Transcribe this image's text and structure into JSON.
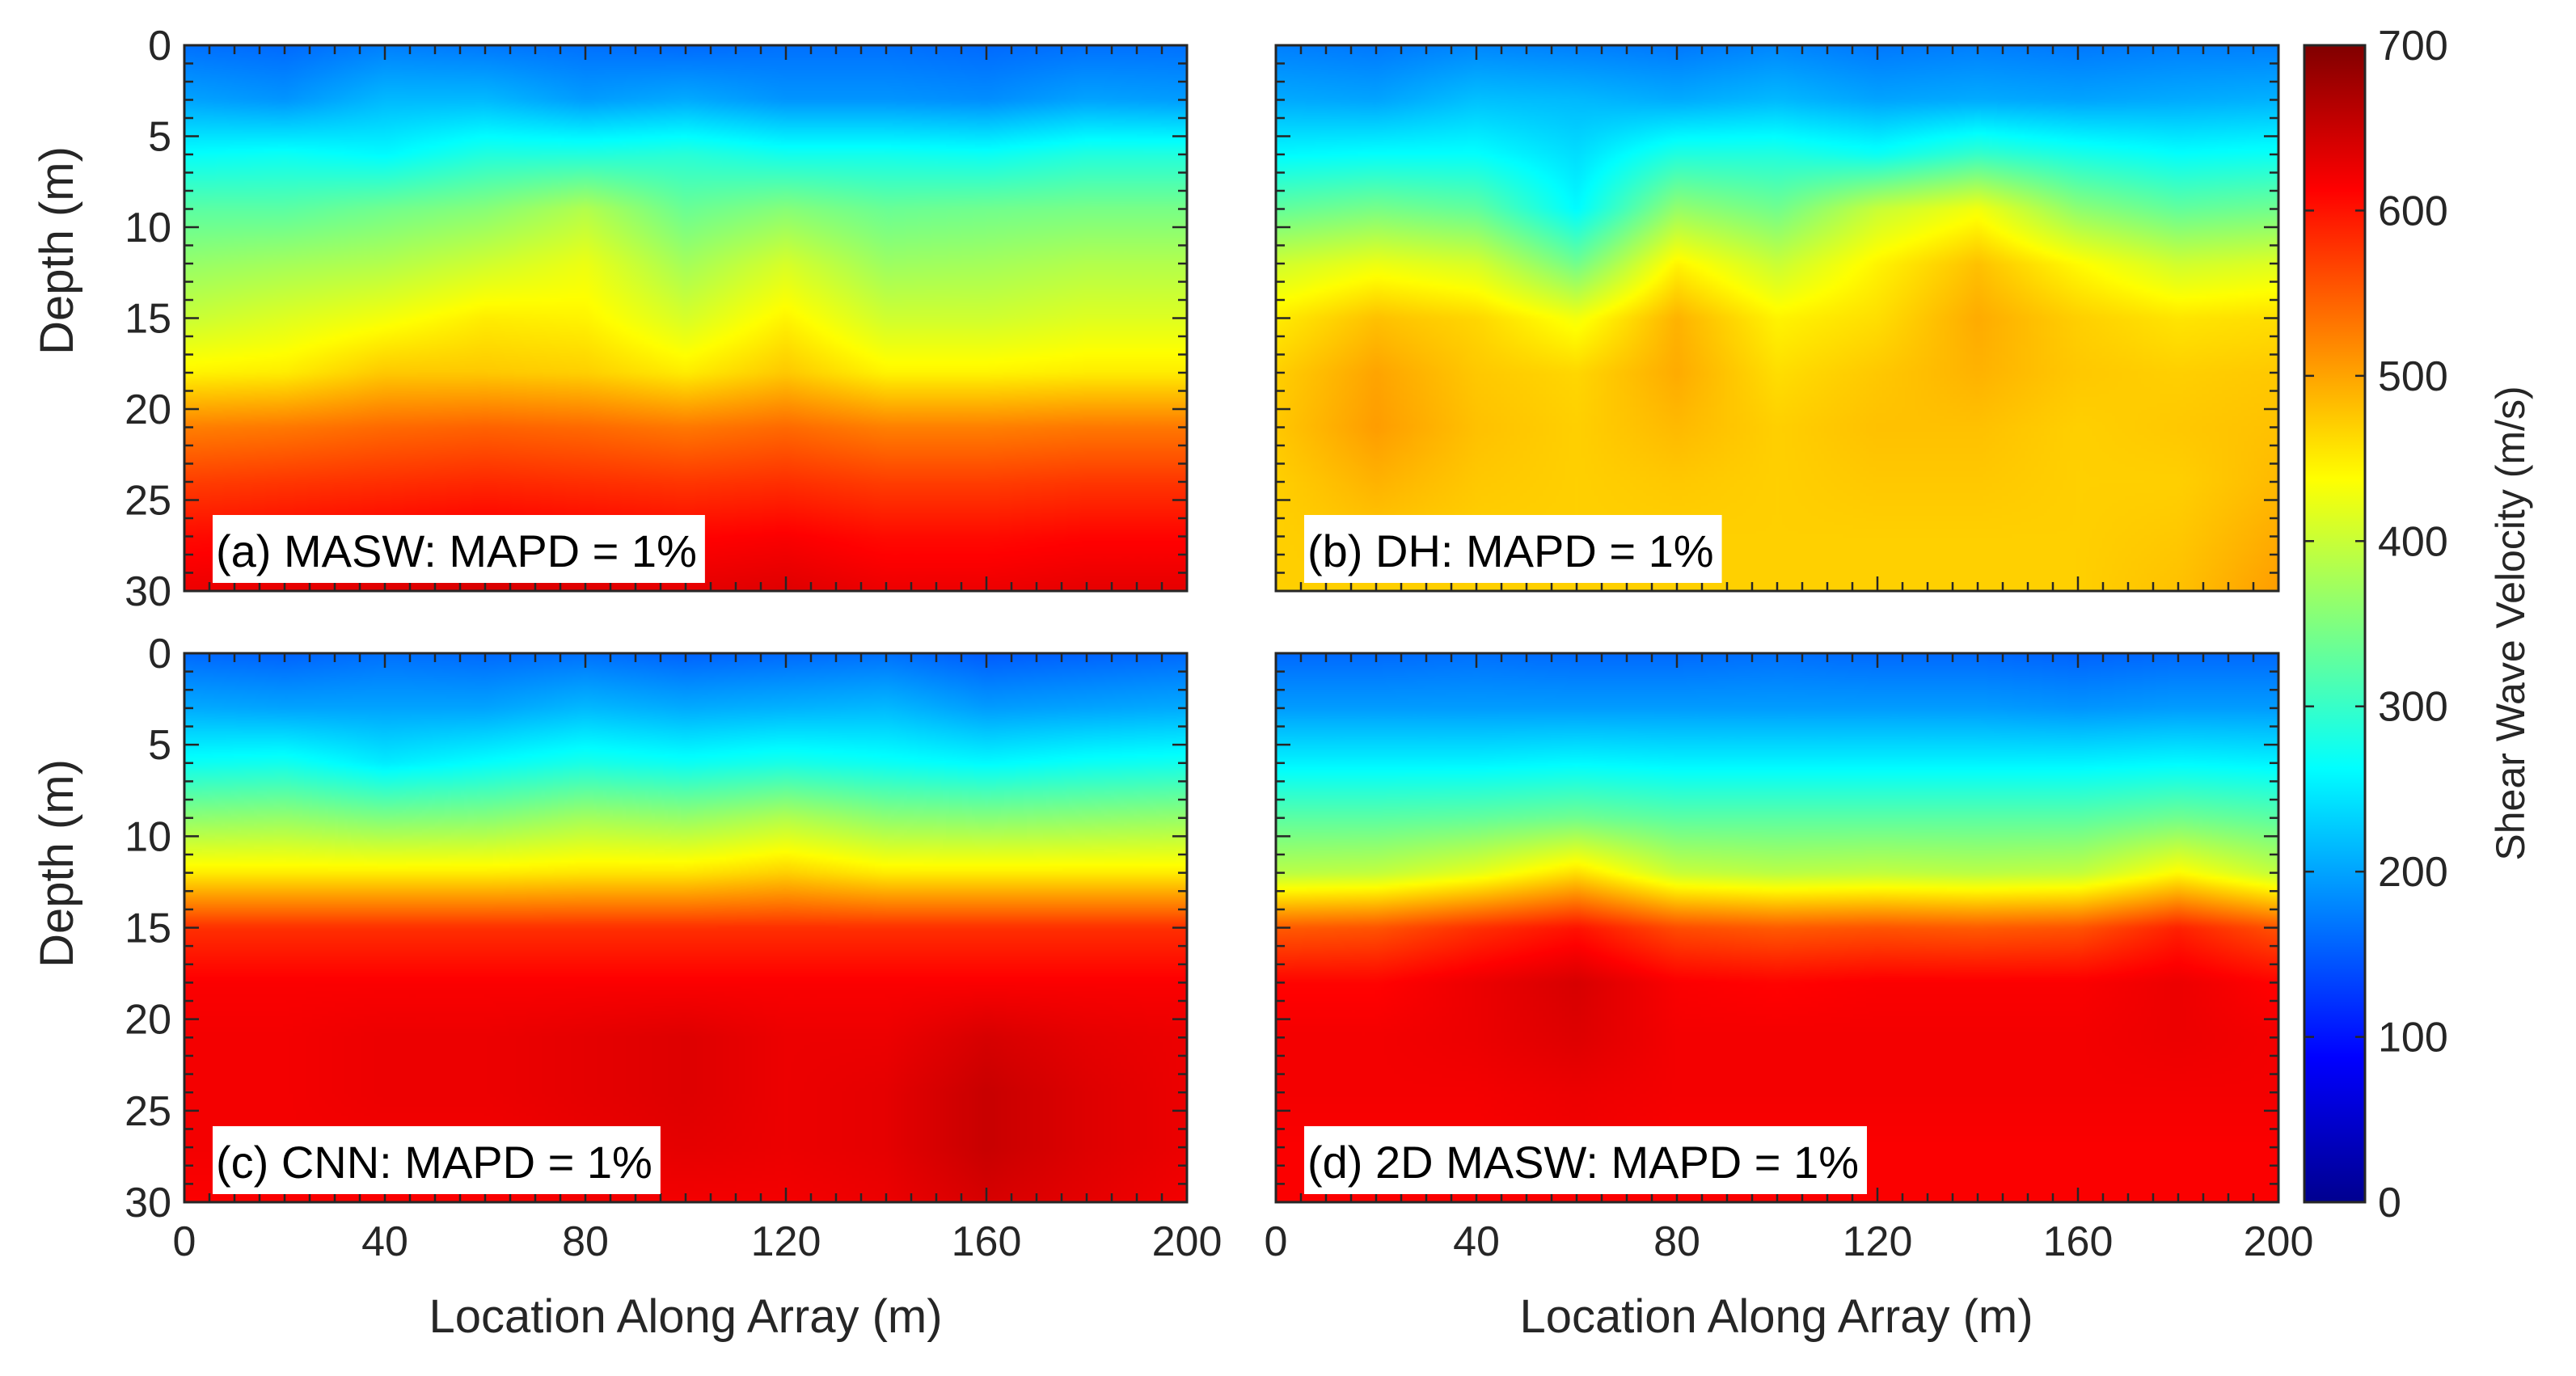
{
  "chart_data": {
    "type": "heatmap",
    "shared": {
      "xlabel": "Location Along Array (m)",
      "ylabel": "Depth (m)",
      "x_ticks": [
        0,
        40,
        80,
        120,
        160,
        200
      ],
      "y_ticks": [
        0,
        5,
        10,
        15,
        20,
        25,
        30
      ],
      "xlim": [
        0,
        200
      ],
      "ylim": [
        0,
        30
      ],
      "y_reversed": true
    },
    "colorbar": {
      "label": "Shear Wave Velocity (m/s)",
      "ticks": [
        0,
        100,
        200,
        300,
        400,
        500,
        600,
        700
      ],
      "range": [
        0,
        700
      ],
      "colormap": "jet"
    },
    "panels": [
      {
        "label": "(a) MASW: MAPD = 1%",
        "x": [
          0,
          20,
          40,
          60,
          80,
          100,
          120,
          140,
          160,
          180,
          200
        ],
        "y": [
          0,
          3,
          6,
          9,
          12,
          15,
          18,
          21,
          24,
          27,
          30
        ],
        "z": [
          [
            165,
            160,
            175,
            170,
            165,
            160,
            165,
            165,
            160,
            165,
            165
          ],
          [
            200,
            190,
            215,
            215,
            195,
            205,
            190,
            190,
            185,
            200,
            195
          ],
          [
            265,
            270,
            260,
            285,
            285,
            290,
            275,
            275,
            270,
            285,
            285
          ],
          [
            325,
            325,
            340,
            355,
            385,
            335,
            355,
            335,
            340,
            345,
            345
          ],
          [
            365,
            375,
            385,
            405,
            425,
            375,
            410,
            370,
            375,
            385,
            385
          ],
          [
            400,
            415,
            430,
            450,
            445,
            410,
            445,
            405,
            405,
            415,
            415
          ],
          [
            445,
            450,
            475,
            475,
            470,
            450,
            475,
            445,
            445,
            450,
            450
          ],
          [
            525,
            530,
            540,
            545,
            540,
            530,
            540,
            525,
            525,
            530,
            530
          ],
          [
            570,
            575,
            580,
            585,
            580,
            575,
            580,
            570,
            570,
            575,
            575
          ],
          [
            605,
            610,
            615,
            620,
            615,
            610,
            615,
            605,
            605,
            610,
            610
          ],
          [
            625,
            630,
            635,
            640,
            635,
            630,
            635,
            625,
            625,
            630,
            630
          ]
        ]
      },
      {
        "label": "(b) DH: MAPD = 1%",
        "x": [
          0,
          20,
          40,
          60,
          80,
          100,
          120,
          140,
          160,
          180,
          200
        ],
        "y": [
          0,
          3,
          6,
          9,
          12,
          15,
          18,
          21,
          24,
          27,
          30
        ],
        "z": [
          [
            175,
            170,
            180,
            175,
            170,
            180,
            170,
            175,
            170,
            175,
            175
          ],
          [
            205,
            200,
            220,
            215,
            205,
            215,
            200,
            205,
            200,
            205,
            210
          ],
          [
            260,
            265,
            265,
            240,
            285,
            285,
            270,
            300,
            280,
            265,
            270
          ],
          [
            330,
            345,
            330,
            260,
            365,
            340,
            400,
            430,
            360,
            330,
            340
          ],
          [
            405,
            425,
            410,
            340,
            445,
            400,
            445,
            480,
            440,
            405,
            415
          ],
          [
            450,
            480,
            465,
            430,
            490,
            445,
            460,
            495,
            470,
            455,
            460
          ],
          [
            470,
            500,
            475,
            465,
            495,
            460,
            475,
            490,
            475,
            470,
            475
          ],
          [
            475,
            505,
            480,
            470,
            485,
            470,
            480,
            480,
            470,
            475,
            480
          ],
          [
            470,
            490,
            475,
            470,
            475,
            470,
            475,
            475,
            470,
            470,
            485
          ],
          [
            470,
            475,
            470,
            470,
            470,
            470,
            470,
            470,
            470,
            475,
            495
          ],
          [
            470,
            470,
            470,
            470,
            470,
            470,
            470,
            470,
            470,
            480,
            505
          ]
        ]
      },
      {
        "label": "(c) CNN: MAPD = 1%",
        "x": [
          0,
          20,
          40,
          60,
          80,
          100,
          120,
          140,
          160,
          180,
          200
        ],
        "y": [
          0,
          3,
          6,
          9,
          12,
          15,
          18,
          21,
          24,
          27,
          30
        ],
        "z": [
          [
            160,
            155,
            165,
            160,
            165,
            155,
            160,
            165,
            150,
            155,
            160
          ],
          [
            205,
            200,
            200,
            200,
            215,
            205,
            210,
            215,
            195,
            200,
            205
          ],
          [
            270,
            275,
            250,
            265,
            280,
            270,
            280,
            270,
            260,
            270,
            275
          ],
          [
            360,
            365,
            350,
            355,
            375,
            365,
            385,
            360,
            355,
            360,
            365
          ],
          [
            450,
            450,
            450,
            450,
            455,
            455,
            470,
            450,
            450,
            450,
            450
          ],
          [
            580,
            580,
            580,
            580,
            580,
            580,
            580,
            580,
            580,
            580,
            580
          ],
          [
            615,
            615,
            615,
            615,
            615,
            615,
            615,
            615,
            615,
            615,
            615
          ],
          [
            620,
            620,
            625,
            625,
            630,
            635,
            625,
            625,
            640,
            630,
            625
          ],
          [
            620,
            620,
            625,
            625,
            630,
            635,
            625,
            630,
            650,
            635,
            625
          ],
          [
            620,
            620,
            620,
            620,
            625,
            630,
            625,
            630,
            650,
            635,
            625
          ],
          [
            615,
            615,
            615,
            615,
            620,
            620,
            620,
            625,
            640,
            630,
            620
          ]
        ]
      },
      {
        "label": "(d) 2D MASW: MAPD = 1%",
        "x": [
          0,
          20,
          40,
          60,
          80,
          100,
          120,
          140,
          160,
          180,
          200
        ],
        "y": [
          0,
          3,
          6,
          9,
          12,
          15,
          18,
          21,
          24,
          27,
          30
        ],
        "z": [
          [
            160,
            160,
            165,
            160,
            160,
            165,
            160,
            160,
            155,
            160,
            160
          ],
          [
            195,
            195,
            195,
            195,
            195,
            195,
            195,
            195,
            190,
            195,
            195
          ],
          [
            255,
            255,
            255,
            260,
            255,
            255,
            255,
            255,
            255,
            260,
            255
          ],
          [
            325,
            325,
            330,
            340,
            325,
            325,
            325,
            325,
            325,
            340,
            325
          ],
          [
            390,
            395,
            420,
            460,
            400,
            390,
            395,
            390,
            395,
            440,
            395
          ],
          [
            550,
            555,
            580,
            600,
            560,
            550,
            555,
            550,
            555,
            590,
            555
          ],
          [
            610,
            610,
            625,
            640,
            615,
            610,
            615,
            615,
            615,
            625,
            610
          ],
          [
            620,
            620,
            625,
            635,
            620,
            620,
            620,
            620,
            620,
            625,
            620
          ],
          [
            620,
            620,
            620,
            625,
            620,
            620,
            620,
            620,
            620,
            620,
            620
          ],
          [
            615,
            615,
            615,
            620,
            615,
            615,
            615,
            615,
            615,
            615,
            615
          ],
          [
            615,
            615,
            615,
            615,
            615,
            615,
            615,
            615,
            615,
            615,
            615
          ]
        ]
      }
    ]
  }
}
